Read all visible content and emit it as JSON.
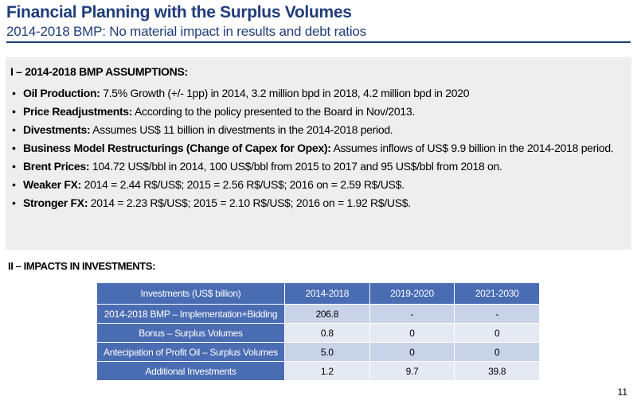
{
  "header": {
    "title": "Financial Planning with the Surplus Volumes",
    "subtitle": "2014-2018 BMP: No material impact in results and debt ratios"
  },
  "assumptions": {
    "heading": "I – 2014-2018 BMP ASSUMPTIONS:",
    "items": [
      {
        "label": "Oil Production:",
        "text": " 7.5% Growth (+/- 1pp) in 2014, 3.2 million bpd in 2018, 4.2 million bpd in 2020"
      },
      {
        "label": "Price Readjustments:",
        "text": " According to the policy presented to the Board in Nov/2013."
      },
      {
        "label": "Divestments:",
        "text": " Assumes US$ 11 billion in divestments in the 2014-2018 period."
      },
      {
        "label": "Business Model Restructurings (Change of Capex for Opex):",
        "text": " Assumes inflows of US$ 9.9 billion in the 2014-2018 period."
      },
      {
        "label": "Brent Prices:",
        "text": " 104.72 US$/bbl in 2014, 100 US$/bbl from 2015 to 2017 and 95 US$/bbl from 2018 on."
      },
      {
        "label": "Weaker FX:",
        "text": " 2014 = 2.44 R$/US$;  2015 = 2.56 R$/US$; 2016 on = 2.59  R$/US$."
      },
      {
        "label": "Stronger FX:",
        "text": " 2014 = 2.23 R$/US$;  2015 = 2.10 R$/US$; 2016 on = 1.92  R$/US$."
      }
    ]
  },
  "investments": {
    "heading": "II – IMPACTS IN INVESTMENTS:",
    "columns": [
      "Investments (US$ billion)",
      "2014-2018",
      "2019-2020",
      "2021-2030"
    ],
    "rows": [
      {
        "label": "2014-2018 BMP – Implementation+Bidding",
        "values": [
          "206.8",
          "-",
          "-"
        ]
      },
      {
        "label": "Bonus – Surplus Volumes",
        "values": [
          "0.8",
          "0",
          "0"
        ]
      },
      {
        "label": "Antecipation of Profit Oil – Surplus Volumes",
        "values": [
          "5.0",
          "0",
          "0"
        ]
      },
      {
        "label": "Additional Investments",
        "values": [
          "1.2",
          "9.7",
          "39.8"
        ]
      }
    ]
  },
  "footer": {
    "page_number": "11"
  }
}
